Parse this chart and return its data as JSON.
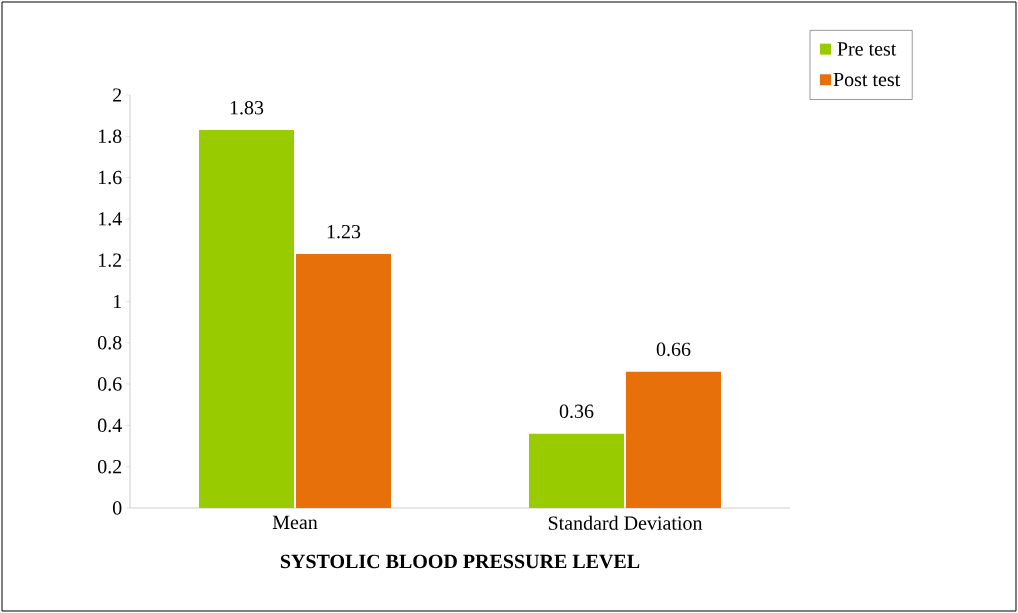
{
  "chart_data": {
    "type": "bar",
    "xlabel": "**SYSTOLIC BLOOD PRESSURE LEVEL**",
    "categories": [
      "Mean",
      "Standard Deviation"
    ],
    "series": [
      {
        "name": "Pre test",
        "color": "#99cc00",
        "values": [
          1.83,
          0.36
        ]
      },
      {
        "name": "Post test",
        "color": "#e8700a",
        "values": [
          1.23,
          0.66
        ]
      }
    ],
    "ylim": [
      0,
      2
    ],
    "yticks": [
      0,
      0.2,
      0.4,
      0.6,
      0.8,
      1,
      1.2,
      1.4,
      1.6,
      1.8,
      2
    ],
    "data_labels": true,
    "grid": false,
    "legend": "top right"
  }
}
